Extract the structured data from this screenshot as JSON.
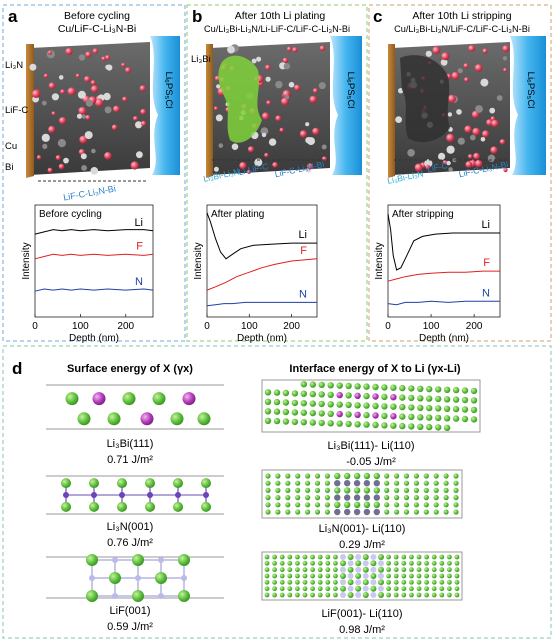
{
  "panels": [
    {
      "letter": "a",
      "title1": "Before cycling",
      "title2": "Cu/LiF-C-Li₃N-Bi",
      "side_labels": [
        "Li₃N",
        "LiF-C",
        "Cu",
        "Bi"
      ],
      "electrolyte": "Li₆PS₅Cl",
      "layer_labels": [
        "LiF-C-Li₃N-Bi"
      ],
      "plot_caption": "Before cycling"
    },
    {
      "letter": "b",
      "title1": "After 10th Li plating",
      "title2": "Cu/Li₃Bi-Li₃N/Li-LiF-C/LiF-C-Li₃N-Bi",
      "side_labels": [
        "Li₃Bi"
      ],
      "electrolyte": "Li₆PS₅Cl",
      "layer_labels": [
        "Li₃Bi-Li₃N",
        "Li-LiF-C",
        "LiF-C-Li₃N-Bi"
      ],
      "plot_caption": "After plating"
    },
    {
      "letter": "c",
      "title1": "After 10th Li stripping",
      "title2": "Cu/Li₃Bi-Li₃N/LiF-C/LiF-C-Li₃N-Bi",
      "side_labels": [],
      "electrolyte": "Li₆PS₅Cl",
      "layer_labels": [
        "Li₃Bi-Li₃N",
        "LiF-C",
        "LiF-C-Li₃N-Bi"
      ],
      "plot_caption": "After stripping"
    }
  ],
  "chart_data": [
    {
      "type": "line",
      "title": "Before cycling",
      "xlabel": "Depth (nm)",
      "ylabel": "Intensity",
      "xlim": [
        0,
        260
      ],
      "xticks": [
        0,
        100,
        200
      ],
      "ylim": [
        0,
        1
      ],
      "series": [
        {
          "name": "Li",
          "color": "#000000",
          "x": [
            0,
            20,
            40,
            60,
            80,
            100,
            130,
            160,
            200,
            240,
            260
          ],
          "y": [
            0.74,
            0.76,
            0.78,
            0.77,
            0.78,
            0.77,
            0.78,
            0.77,
            0.78,
            0.78,
            0.77
          ]
        },
        {
          "name": "F",
          "color": "#e02020",
          "x": [
            0,
            20,
            40,
            60,
            80,
            100,
            130,
            160,
            200,
            240,
            260
          ],
          "y": [
            0.52,
            0.54,
            0.56,
            0.55,
            0.56,
            0.55,
            0.56,
            0.55,
            0.56,
            0.55,
            0.56
          ]
        },
        {
          "name": "N",
          "color": "#1f3fa8",
          "x": [
            0,
            20,
            40,
            60,
            80,
            100,
            130,
            160,
            200,
            240,
            260
          ],
          "y": [
            0.23,
            0.25,
            0.24,
            0.25,
            0.24,
            0.25,
            0.24,
            0.25,
            0.24,
            0.25,
            0.24
          ]
        }
      ]
    },
    {
      "type": "line",
      "title": "After plating",
      "xlabel": "Depth (nm)",
      "ylabel": "Intensity",
      "xlim": [
        0,
        260
      ],
      "xticks": [
        0,
        100,
        200
      ],
      "ylim": [
        0,
        1
      ],
      "series": [
        {
          "name": "Li",
          "color": "#000000",
          "x": [
            0,
            8,
            20,
            32,
            45,
            60,
            80,
            110,
            150,
            200,
            260
          ],
          "y": [
            0.93,
            0.85,
            0.7,
            0.58,
            0.52,
            0.56,
            0.61,
            0.64,
            0.65,
            0.66,
            0.66
          ]
        },
        {
          "name": "F",
          "color": "#e02020",
          "x": [
            0,
            20,
            45,
            70,
            100,
            130,
            160,
            200,
            260
          ],
          "y": [
            0.24,
            0.27,
            0.31,
            0.36,
            0.4,
            0.44,
            0.47,
            0.5,
            0.52
          ]
        },
        {
          "name": "N",
          "color": "#1f3fa8",
          "x": [
            0,
            20,
            40,
            60,
            90,
            120,
            160,
            200,
            260
          ],
          "y": [
            0.1,
            0.11,
            0.12,
            0.12,
            0.13,
            0.13,
            0.13,
            0.13,
            0.13
          ]
        }
      ]
    },
    {
      "type": "line",
      "title": "After stripping",
      "xlabel": "Depth (nm)",
      "ylabel": "Intensity",
      "xlim": [
        0,
        260
      ],
      "xticks": [
        0,
        100,
        200
      ],
      "ylim": [
        0,
        1
      ],
      "series": [
        {
          "name": "Li",
          "color": "#000000",
          "x": [
            0,
            6,
            12,
            20,
            30,
            45,
            60,
            80,
            110,
            150,
            200,
            260
          ],
          "y": [
            0.92,
            0.78,
            0.55,
            0.42,
            0.44,
            0.56,
            0.68,
            0.72,
            0.74,
            0.75,
            0.75,
            0.75
          ]
        },
        {
          "name": "F",
          "color": "#e02020",
          "x": [
            0,
            20,
            40,
            70,
            100,
            140,
            180,
            220,
            260
          ],
          "y": [
            0.32,
            0.34,
            0.36,
            0.38,
            0.39,
            0.4,
            0.4,
            0.41,
            0.41
          ]
        },
        {
          "name": "N",
          "color": "#1f3fa8",
          "x": [
            0,
            20,
            40,
            70,
            100,
            140,
            180,
            220,
            260
          ],
          "y": [
            0.12,
            0.11,
            0.13,
            0.13,
            0.14,
            0.13,
            0.14,
            0.14,
            0.14
          ]
        }
      ]
    }
  ],
  "panel_d": {
    "letter": "d",
    "col1_title": "Surface energy of X (γx)",
    "col2_title": "Interface energy of X to Li (γx-Li)",
    "structures": [
      {
        "name": "Li₃Bi(111)",
        "value": "0.71 J/m²",
        "kind": "bi"
      },
      {
        "name": "Li₃N(001)",
        "value": "0.76 J/m²",
        "kind": "n"
      },
      {
        "name": "LiF(001)",
        "value": "0.59 J/m²",
        "kind": "f"
      }
    ],
    "interfaces": [
      {
        "name": "Li₃Bi(111)- Li(110)",
        "value": "-0.05 J/m²"
      },
      {
        "name": "Li₃N(001)- Li(110)",
        "value": "0.29 J/m²"
      },
      {
        "name": "LiF(001)- Li(110)",
        "value": "0.98 J/m²"
      }
    ]
  }
}
